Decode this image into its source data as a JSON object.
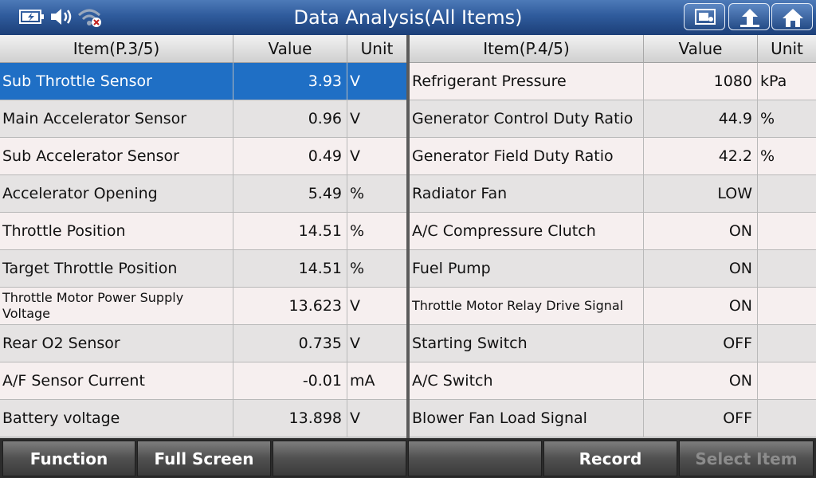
{
  "header": {
    "title": "Data Analysis(All Items)",
    "status_icons": [
      "battery-charging-icon",
      "speaker-icon",
      "wifi-off-icon"
    ],
    "buttons": [
      "screenshot-icon",
      "back-up-arrow-icon",
      "home-icon"
    ]
  },
  "left_table": {
    "headers": {
      "item": "Item(P.3/5)",
      "value": "Value",
      "unit": "Unit"
    },
    "rows": [
      {
        "item": "Sub Throttle Sensor",
        "value": "3.93",
        "unit": "V"
      },
      {
        "item": "Main Accelerator Sensor",
        "value": "0.96",
        "unit": "V"
      },
      {
        "item": "Sub Accelerator Sensor",
        "value": "0.49",
        "unit": "V"
      },
      {
        "item": "Accelerator Opening",
        "value": "5.49",
        "unit": "%"
      },
      {
        "item": "Throttle Position",
        "value": "14.51",
        "unit": "%"
      },
      {
        "item": "Target Throttle Position",
        "value": "14.51",
        "unit": "%"
      },
      {
        "item": "Throttle Motor Power Supply Voltage",
        "value": "13.623",
        "unit": "V"
      },
      {
        "item": "Rear O2 Sensor",
        "value": "0.735",
        "unit": "V"
      },
      {
        "item": "A/F Sensor Current",
        "value": "-0.01",
        "unit": "mA"
      },
      {
        "item": "Battery voltage",
        "value": "13.898",
        "unit": "V"
      }
    ]
  },
  "right_table": {
    "headers": {
      "item": "Item(P.4/5)",
      "value": "Value",
      "unit": "Unit"
    },
    "rows": [
      {
        "item": "Refrigerant Pressure",
        "value": "1080",
        "unit": "kPa"
      },
      {
        "item": "Generator Control Duty Ratio",
        "value": "44.9",
        "unit": "%"
      },
      {
        "item": "Generator Field Duty Ratio",
        "value": "42.2",
        "unit": "%"
      },
      {
        "item": "Radiator Fan",
        "value": "LOW",
        "unit": ""
      },
      {
        "item": "A/C Compressure Clutch",
        "value": "ON",
        "unit": ""
      },
      {
        "item": "Fuel Pump",
        "value": "ON",
        "unit": ""
      },
      {
        "item": "Throttle Motor Relay Drive Signal",
        "value": "ON",
        "unit": ""
      },
      {
        "item": "Starting Switch",
        "value": "OFF",
        "unit": ""
      },
      {
        "item": "A/C Switch",
        "value": "ON",
        "unit": ""
      },
      {
        "item": "Blower Fan Load Signal",
        "value": "OFF",
        "unit": ""
      }
    ]
  },
  "footer": {
    "function": "Function",
    "full_screen": "Full Screen",
    "record": "Record",
    "select_item": "Select Item"
  },
  "colors": {
    "selected_row": "#1f6fc5",
    "title_bar": "#2f5b9c"
  }
}
